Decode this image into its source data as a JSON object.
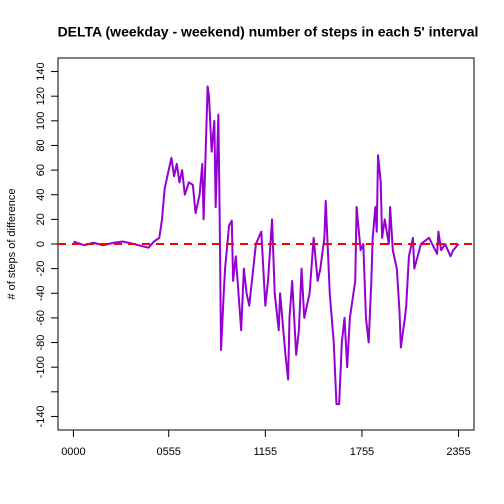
{
  "chart_data": {
    "type": "line",
    "title": "DELTA (weekday - weekend) number of steps in each 5' interval",
    "y_label": "# of steps of difference",
    "x": [
      0,
      8,
      15,
      22,
      30,
      37,
      45,
      52,
      56,
      60,
      64,
      66,
      68,
      71,
      73,
      75,
      77,
      79,
      81,
      83,
      86,
      89,
      91,
      94,
      96,
      97,
      100,
      101,
      103,
      105,
      106,
      108,
      109,
      110,
      112,
      113,
      116,
      118,
      119,
      121,
      123,
      125,
      127,
      129,
      131,
      133,
      136,
      140,
      143,
      145,
      148,
      150,
      153,
      154,
      158,
      160,
      161,
      163,
      166,
      168,
      170,
      172,
      176,
      179,
      182,
      184,
      187,
      188,
      191,
      194,
      196,
      198,
      200,
      202,
      204,
      206,
      210,
      211,
      214,
      216,
      218,
      220,
      222,
      223,
      225,
      226,
      227,
      229,
      230,
      232,
      235,
      236,
      238,
      241,
      243,
      244,
      247,
      248,
      250,
      253,
      254,
      259,
      265,
      271,
      272,
      274,
      277,
      281,
      283,
      287
    ],
    "series": [
      {
        "name": "delta",
        "color": "#9400d3",
        "values": [
          2,
          -1,
          1,
          -1,
          1,
          2,
          0,
          -2,
          -3,
          2,
          5,
          20,
          45,
          60,
          70,
          55,
          65,
          50,
          60,
          40,
          50,
          48,
          25,
          40,
          65,
          20,
          128,
          120,
          75,
          100,
          30,
          105,
          20,
          -86,
          -40,
          -20,
          15,
          19,
          -30,
          -10,
          -40,
          -70,
          -20,
          -40,
          -50,
          -30,
          0,
          10,
          -50,
          -30,
          20,
          -40,
          -70,
          -40,
          -90,
          -110,
          -60,
          -30,
          -90,
          -70,
          -20,
          -60,
          -40,
          5,
          -30,
          -20,
          5,
          35,
          -40,
          -80,
          -130,
          -130,
          -80,
          -60,
          -100,
          -60,
          -30,
          30,
          -5,
          0,
          -60,
          -80,
          -30,
          5,
          30,
          10,
          72,
          50,
          5,
          20,
          0,
          30,
          -5,
          -20,
          -55,
          -84,
          -60,
          -50,
          -10,
          5,
          -20,
          0,
          5,
          -8,
          10,
          -5,
          0,
          -10,
          -5,
          0
        ]
      }
    ],
    "xlim": [
      -11.5,
      298.5
    ],
    "xticks": [
      {
        "value": 0,
        "label": "0000"
      },
      {
        "value": 71,
        "label": "0555"
      },
      {
        "value": 143,
        "label": "1155"
      },
      {
        "value": 215,
        "label": "1755"
      },
      {
        "value": 287,
        "label": "2355"
      }
    ],
    "ylim": [
      -151,
      151
    ],
    "yticks": [
      -140,
      {
        "value": -120,
        "label": null
      },
      -100,
      -80,
      -60,
      -40,
      -20,
      0,
      20,
      40,
      60,
      80,
      100,
      120,
      140
    ],
    "reference_line": {
      "value": 0,
      "color": "#ff0000"
    }
  }
}
